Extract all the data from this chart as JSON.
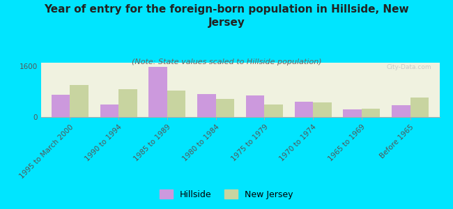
{
  "title": "Year of entry for the foreign-born population in Hillside, New\nJersey",
  "subtitle": "(Note: State values scaled to Hillside population)",
  "categories": [
    "1995 to March 2000",
    "1990 to 1994",
    "1985 to 1989",
    "1980 to 1984",
    "1975 to 1979",
    "1970 to 1974",
    "1965 to 1969",
    "Before 1965"
  ],
  "hillside_values": [
    700,
    400,
    1560,
    720,
    680,
    480,
    230,
    360
  ],
  "nj_values": [
    1010,
    870,
    830,
    570,
    390,
    450,
    270,
    620
  ],
  "hillside_color": "#cc99dd",
  "nj_color": "#c8d4a0",
  "background_color": "#00e5ff",
  "plot_bg": "#f0f2e0",
  "ylim": [
    0,
    1700
  ],
  "bar_width": 0.38,
  "watermark": "City-Data.com",
  "title_fontsize": 11,
  "subtitle_fontsize": 8,
  "legend_fontsize": 9,
  "tick_fontsize": 7.5
}
